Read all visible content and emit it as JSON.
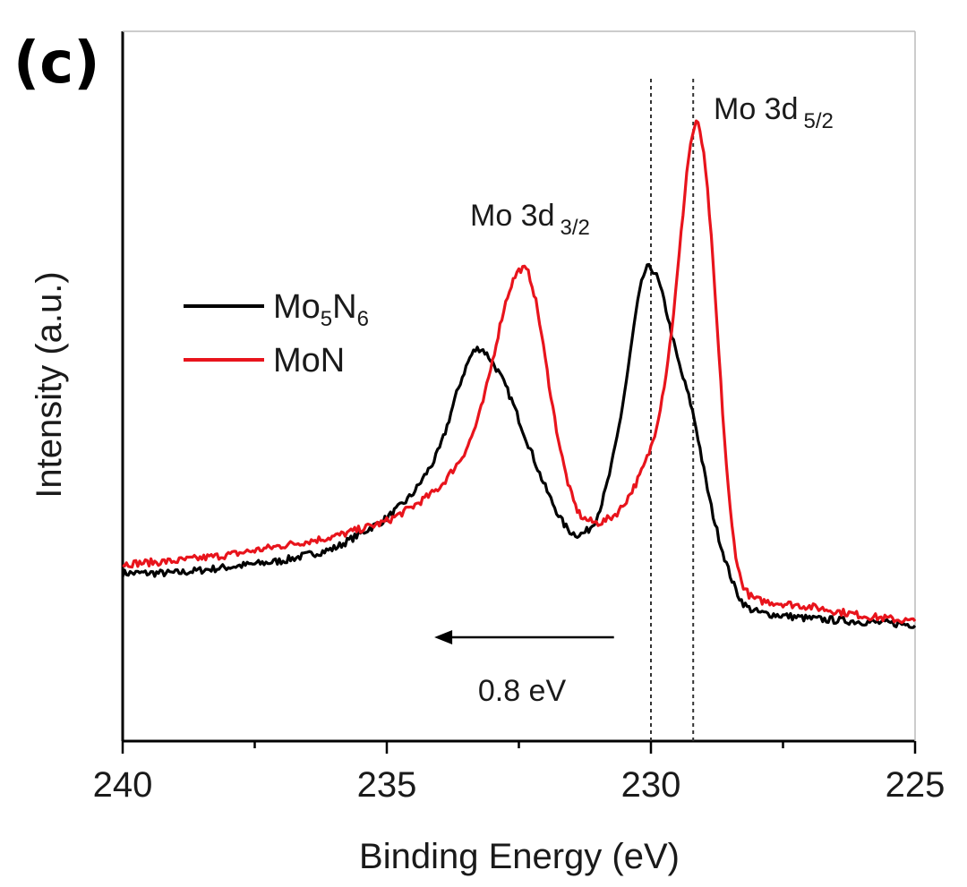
{
  "panel_label": "(c)",
  "chart_data": {
    "type": "line",
    "xlabel": "Binding Energy (eV)",
    "ylabel": "Intensity (a.u.)",
    "xlim": [
      240,
      225
    ],
    "x_reversed": true,
    "ylim": [
      0,
      1
    ],
    "y_ticks_labeled": false,
    "grid": false,
    "x_ticks": [
      "240",
      "235",
      "230",
      "225"
    ],
    "legend_position": "left-middle",
    "series": [
      {
        "name": "Mo5N6",
        "name_main": "Mo",
        "name_sub1": "5",
        "name_mid": "N",
        "name_sub2": "6",
        "color": "#000000",
        "x": [
          240,
          239,
          238,
          237,
          236,
          235,
          234.5,
          234,
          233.6,
          233.3,
          233.0,
          232.7,
          232.4,
          232.0,
          231.6,
          231.3,
          231.0,
          230.7,
          230.4,
          230.2,
          230.0,
          229.8,
          229.5,
          229.2,
          228.9,
          228.6,
          228.3,
          228.0,
          227.5,
          227.0,
          226.0,
          225.0
        ],
        "y": [
          0.23,
          0.23,
          0.24,
          0.25,
          0.27,
          0.32,
          0.36,
          0.43,
          0.55,
          0.61,
          0.58,
          0.53,
          0.46,
          0.37,
          0.3,
          0.29,
          0.32,
          0.42,
          0.58,
          0.72,
          0.745,
          0.7,
          0.58,
          0.5,
          0.35,
          0.25,
          0.18,
          0.165,
          0.16,
          0.155,
          0.15,
          0.145
        ]
      },
      {
        "name": "MoN",
        "color": "#e8141c",
        "x": [
          240,
          239,
          238,
          237,
          236,
          235,
          234.5,
          234.0,
          233.5,
          233.2,
          233.0,
          232.7,
          232.4,
          232.2,
          232.0,
          231.7,
          231.4,
          231.0,
          230.6,
          230.2,
          229.9,
          229.6,
          229.4,
          229.2,
          229.0,
          228.8,
          228.6,
          228.4,
          228.2,
          228.0,
          227.5,
          227.0,
          226.0,
          225.0
        ],
        "y": [
          0.245,
          0.25,
          0.26,
          0.275,
          0.29,
          0.315,
          0.34,
          0.37,
          0.43,
          0.5,
          0.58,
          0.7,
          0.745,
          0.7,
          0.58,
          0.42,
          0.325,
          0.31,
          0.33,
          0.39,
          0.46,
          0.62,
          0.82,
          1.0,
          0.95,
          0.72,
          0.42,
          0.24,
          0.195,
          0.185,
          0.18,
          0.175,
          0.16,
          0.15
        ]
      }
    ],
    "annotations": [
      {
        "id": "mo3d32",
        "main": "Mo 3d",
        "sub": "3/2",
        "x": 232.4
      },
      {
        "id": "mo3d52",
        "main": "Mo 3d",
        "sub": "5/2",
        "x": 229.2
      },
      {
        "id": "shift",
        "text": "0.8 eV",
        "arrow_from_x": 230.7,
        "arrow_to_x": 234.1
      }
    ],
    "reference_lines_x": [
      230.0,
      229.2
    ]
  }
}
